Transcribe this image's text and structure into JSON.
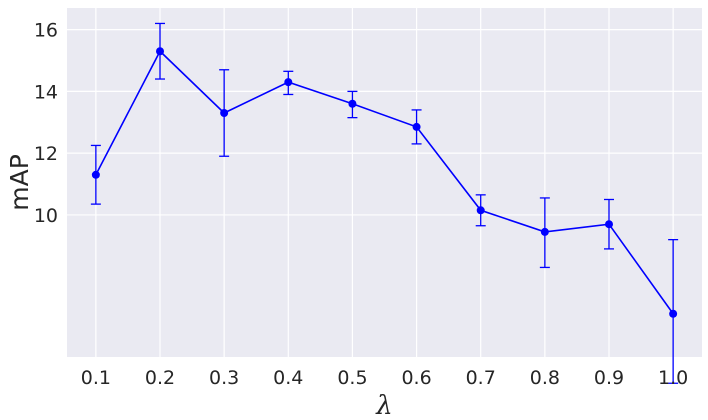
{
  "chart_data": {
    "type": "line",
    "xlabel": "λ",
    "ylabel": "mAP",
    "x": [
      0.1,
      0.2,
      0.3,
      0.4,
      0.5,
      0.6,
      0.7,
      0.8,
      0.9,
      1.0
    ],
    "x_tick_labels": [
      "0.1",
      "0.2",
      "0.3",
      "0.4",
      "0.5",
      "0.6",
      "0.7",
      "0.8",
      "0.9",
      "1.0"
    ],
    "y_ticks": [
      10,
      12,
      14,
      16
    ],
    "ylim": [
      5.4,
      16.7
    ],
    "grid": true,
    "series": [
      {
        "values": [
          11.3,
          15.3,
          13.3,
          14.3,
          13.6,
          12.85,
          10.15,
          9.45,
          9.7,
          6.8
        ],
        "error_low": [
          10.35,
          14.4,
          11.9,
          13.9,
          13.15,
          12.3,
          9.65,
          8.3,
          8.9,
          4.55
        ],
        "error_high": [
          12.25,
          16.2,
          14.7,
          14.65,
          14.0,
          13.4,
          10.65,
          10.55,
          10.5,
          9.2
        ],
        "color": "#0000ff"
      }
    ],
    "colors": {
      "background": "#eaeaf2",
      "grid": "#ffffff",
      "line": "#0000ff",
      "text": "#262626"
    }
  }
}
